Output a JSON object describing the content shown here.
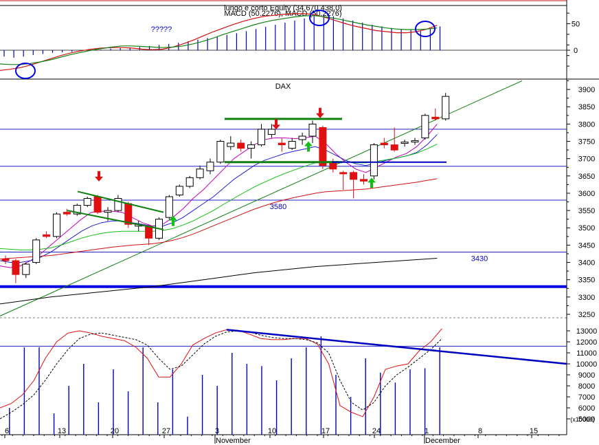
{
  "chart_data": [
    {
      "type": "line",
      "panel": "macd",
      "title": "lungo e corto Equity (34.670.438.0)",
      "subtitle": "MACD (50.2276), MACD (50.2276)",
      "ytick_labels": [
        "50",
        "0"
      ],
      "ylim": [
        -50,
        90
      ],
      "annotation": "?????",
      "series": [
        {
          "color": "#d01010",
          "values": [
            -38,
            -36,
            -33,
            -28,
            -22,
            -16,
            -10,
            -5,
            -1,
            2,
            4,
            5,
            5,
            4,
            2,
            1,
            2,
            6,
            12,
            19,
            27,
            35,
            42,
            49,
            55,
            60,
            64,
            66,
            68,
            69,
            69,
            67,
            62,
            56,
            50,
            45,
            41,
            37,
            35,
            33,
            33,
            35,
            40,
            47
          ]
        },
        {
          "color": "#108010",
          "values": [
            -26,
            -27,
            -27,
            -25,
            -22,
            -18,
            -13,
            -8,
            -4,
            0,
            3,
            6,
            8,
            8,
            7,
            6,
            5,
            6,
            8,
            12,
            17,
            23,
            30,
            36,
            42,
            48,
            53,
            57,
            60,
            63,
            65,
            65,
            63,
            60,
            56,
            52,
            48,
            45,
            42,
            40,
            39,
            39,
            40,
            42
          ]
        }
      ],
      "histogram": [
        -12,
        -14,
        -12,
        -9,
        -7,
        -5,
        -4,
        -3,
        -2,
        -1,
        1,
        3,
        4,
        5,
        6,
        8,
        10,
        12,
        14,
        17,
        20,
        23,
        26,
        29,
        32,
        36,
        40,
        44,
        48,
        52,
        56,
        60,
        64,
        66,
        64,
        60,
        56,
        52,
        48,
        45,
        42,
        40,
        38,
        36,
        40,
        45
      ],
      "markers": [
        "circle",
        "circle",
        "circle"
      ]
    },
    {
      "type": "candlestick",
      "panel": "price",
      "title": "DAX",
      "ytick_labels": [
        "3900",
        "3850",
        "3800",
        "3750",
        "3700",
        "3650",
        "3600",
        "3550",
        "3500",
        "3450",
        "3400",
        "3350",
        "3300",
        "3250"
      ],
      "ylim": [
        3240,
        3930
      ],
      "horizontal_levels": [
        3785,
        3678,
        3580,
        3430,
        3330
      ],
      "level_labels": [
        {
          "text": "3580",
          "value": 3580
        },
        {
          "text": "3430",
          "value": 3430
        }
      ],
      "candles": [
        {
          "o": 3410,
          "h": 3420,
          "l": 3395,
          "c": 3405,
          "dir": "down"
        },
        {
          "o": 3405,
          "h": 3410,
          "l": 3340,
          "c": 3365,
          "dir": "down"
        },
        {
          "o": 3365,
          "h": 3400,
          "l": 3355,
          "c": 3395,
          "dir": "up"
        },
        {
          "o": 3400,
          "h": 3470,
          "l": 3395,
          "c": 3465,
          "dir": "up"
        },
        {
          "o": 3480,
          "h": 3490,
          "l": 3470,
          "c": 3475,
          "dir": "down"
        },
        {
          "o": 3475,
          "h": 3545,
          "l": 3470,
          "c": 3540,
          "dir": "up"
        },
        {
          "o": 3545,
          "h": 3555,
          "l": 3535,
          "c": 3540,
          "dir": "down"
        },
        {
          "o": 3540,
          "h": 3570,
          "l": 3535,
          "c": 3565,
          "dir": "up"
        },
        {
          "o": 3565,
          "h": 3590,
          "l": 3560,
          "c": 3585,
          "dir": "up"
        },
        {
          "o": 3590,
          "h": 3595,
          "l": 3540,
          "c": 3545,
          "dir": "down"
        },
        {
          "o": 3545,
          "h": 3560,
          "l": 3520,
          "c": 3550,
          "dir": "up"
        },
        {
          "o": 3550,
          "h": 3595,
          "l": 3545,
          "c": 3585,
          "dir": "up"
        },
        {
          "o": 3570,
          "h": 3575,
          "l": 3500,
          "c": 3510,
          "dir": "down"
        },
        {
          "o": 3510,
          "h": 3520,
          "l": 3490,
          "c": 3505,
          "dir": "up"
        },
        {
          "o": 3505,
          "h": 3510,
          "l": 3450,
          "c": 3470,
          "dir": "down"
        },
        {
          "o": 3470,
          "h": 3530,
          "l": 3465,
          "c": 3525,
          "dir": "up"
        },
        {
          "o": 3530,
          "h": 3595,
          "l": 3525,
          "c": 3590,
          "dir": "up"
        },
        {
          "o": 3595,
          "h": 3625,
          "l": 3590,
          "c": 3620,
          "dir": "up"
        },
        {
          "o": 3620,
          "h": 3650,
          "l": 3615,
          "c": 3645,
          "dir": "up"
        },
        {
          "o": 3645,
          "h": 3680,
          "l": 3640,
          "c": 3670,
          "dir": "up"
        },
        {
          "o": 3665,
          "h": 3700,
          "l": 3655,
          "c": 3690,
          "dir": "up"
        },
        {
          "o": 3690,
          "h": 3755,
          "l": 3685,
          "c": 3750,
          "dir": "up"
        },
        {
          "o": 3735,
          "h": 3765,
          "l": 3725,
          "c": 3745,
          "dir": "up"
        },
        {
          "o": 3745,
          "h": 3755,
          "l": 3720,
          "c": 3730,
          "dir": "down"
        },
        {
          "o": 3730,
          "h": 3750,
          "l": 3700,
          "c": 3740,
          "dir": "up"
        },
        {
          "o": 3740,
          "h": 3800,
          "l": 3735,
          "c": 3785,
          "dir": "up"
        },
        {
          "o": 3785,
          "h": 3800,
          "l": 3760,
          "c": 3770,
          "dir": "up"
        },
        {
          "o": 3745,
          "h": 3760,
          "l": 3720,
          "c": 3740,
          "dir": "down"
        },
        {
          "o": 3730,
          "h": 3760,
          "l": 3725,
          "c": 3750,
          "dir": "up"
        },
        {
          "o": 3755,
          "h": 3775,
          "l": 3740,
          "c": 3765,
          "dir": "up"
        },
        {
          "o": 3765,
          "h": 3810,
          "l": 3745,
          "c": 3800,
          "dir": "up"
        },
        {
          "o": 3790,
          "h": 3795,
          "l": 3670,
          "c": 3680,
          "dir": "down"
        },
        {
          "o": 3690,
          "h": 3700,
          "l": 3660,
          "c": 3670,
          "dir": "down"
        },
        {
          "o": 3660,
          "h": 3665,
          "l": 3610,
          "c": 3658,
          "dir": "down"
        },
        {
          "o": 3660,
          "h": 3665,
          "l": 3585,
          "c": 3640,
          "dir": "down"
        },
        {
          "o": 3640,
          "h": 3655,
          "l": 3625,
          "c": 3635,
          "dir": "down"
        },
        {
          "o": 3650,
          "h": 3745,
          "l": 3640,
          "c": 3740,
          "dir": "up"
        },
        {
          "o": 3740,
          "h": 3760,
          "l": 3730,
          "c": 3745,
          "dir": "down"
        },
        {
          "o": 3740,
          "h": 3790,
          "l": 3720,
          "c": 3725,
          "dir": "down"
        },
        {
          "o": 3745,
          "h": 3755,
          "l": 3735,
          "c": 3748,
          "dir": "up"
        },
        {
          "o": 3748,
          "h": 3760,
          "l": 3740,
          "c": 3752,
          "dir": "up"
        },
        {
          "o": 3760,
          "h": 3830,
          "l": 3755,
          "c": 3825,
          "dir": "up"
        },
        {
          "o": 3820,
          "h": 3845,
          "l": 3810,
          "c": 3815,
          "dir": "down"
        },
        {
          "o": 3815,
          "h": 3890,
          "l": 3810,
          "c": 3880,
          "dir": "up"
        }
      ],
      "moving_averages": [
        {
          "color": "#c000c0",
          "values": [
            3390,
            3385,
            3390,
            3405,
            3425,
            3450,
            3475,
            3500,
            3525,
            3545,
            3548,
            3548,
            3545,
            3530,
            3515,
            3505,
            3510,
            3530,
            3555,
            3585,
            3610,
            3640,
            3670,
            3700,
            3720,
            3740,
            3755,
            3760,
            3760,
            3758,
            3760,
            3765,
            3745,
            3715,
            3690,
            3670,
            3660,
            3675,
            3690,
            3705,
            3715,
            3735,
            3765,
            3800
          ]
        },
        {
          "color": "#2020d0",
          "values": [
            3405,
            3400,
            3400,
            3405,
            3415,
            3430,
            3450,
            3470,
            3490,
            3505,
            3515,
            3520,
            3520,
            3515,
            3510,
            3505,
            3505,
            3515,
            3530,
            3550,
            3570,
            3590,
            3615,
            3640,
            3660,
            3680,
            3695,
            3705,
            3715,
            3722,
            3728,
            3735,
            3725,
            3710,
            3695,
            3685,
            3680,
            3688,
            3695,
            3702,
            3708,
            3718,
            3740,
            3770
          ]
        },
        {
          "color": "#10c010",
          "values": [
            3440,
            3438,
            3436,
            3436,
            3438,
            3442,
            3450,
            3460,
            3470,
            3478,
            3484,
            3488,
            3490,
            3490,
            3490,
            3490,
            3492,
            3498,
            3508,
            3520,
            3535,
            3550,
            3568,
            3585,
            3602,
            3618,
            3632,
            3645,
            3657,
            3668,
            3678,
            3688,
            3692,
            3692,
            3690,
            3688,
            3688,
            3692,
            3697,
            3702,
            3708,
            3716,
            3728,
            3742
          ]
        },
        {
          "color": "#d01010",
          "values": [
            3410,
            3412,
            3414,
            3416,
            3418,
            3420,
            3424,
            3428,
            3432,
            3436,
            3440,
            3444,
            3447,
            3450,
            3452,
            3454,
            3458,
            3464,
            3472,
            3482,
            3494,
            3506,
            3518,
            3530,
            3542,
            3554,
            3564,
            3573,
            3581,
            3588,
            3594,
            3600,
            3604,
            3606,
            3608,
            3610,
            3612,
            3616,
            3620,
            3624,
            3628,
            3632,
            3637,
            3642
          ]
        },
        {
          "color": "#000000",
          "values": [
            3280,
            3284,
            3288,
            3292,
            3296,
            3300,
            3303,
            3306,
            3309,
            3312,
            3315,
            3318,
            3321,
            3324,
            3327,
            3330,
            3334,
            3338,
            3342,
            3346,
            3350,
            3354,
            3358,
            3362,
            3366,
            3370,
            3373,
            3376,
            3379,
            3382,
            3385,
            3388,
            3390,
            3392,
            3394,
            3396,
            3398,
            3400,
            3402,
            3404,
            3406,
            3408,
            3410,
            3412
          ]
        }
      ],
      "signal_arrows": [
        {
          "type": "sell",
          "color": "#e01010"
        },
        {
          "type": "sell",
          "color": "#e01010"
        },
        {
          "type": "sell",
          "color": "#e01010"
        },
        {
          "type": "buy",
          "color": "#10c010"
        },
        {
          "type": "buy",
          "color": "#10c010"
        },
        {
          "type": "buy",
          "color": "#10c010"
        }
      ]
    },
    {
      "type": "line",
      "panel": "stochastic-volume",
      "ytick_labels": [
        "13000",
        "12000",
        "11000",
        "10000",
        "9000",
        "8000",
        "7000",
        "6000",
        "5000"
      ],
      "ylim": [
        4000,
        13500
      ],
      "axis_unit": "(x10000)",
      "volume": [
        0,
        6000,
        0,
        11500,
        0,
        11500,
        0,
        5500,
        0,
        8000,
        0,
        10000,
        0,
        6500,
        0,
        9500,
        0,
        7500,
        0,
        11500,
        0,
        6500,
        0,
        9500,
        0,
        5200,
        0,
        9000,
        0,
        8000,
        0,
        11000,
        0,
        10000,
        0,
        9800,
        0,
        8500,
        0,
        10500,
        0,
        11500,
        0,
        12500,
        0,
        9000,
        0,
        7000,
        0,
        10500,
        0,
        9200,
        0,
        8300,
        0,
        9500,
        0,
        9600,
        0,
        11500
      ],
      "series": [
        {
          "name": "",
          "color": "#e01010",
          "values": [
            6000,
            6400,
            7200,
            8500,
            10500,
            12000,
            12800,
            13000,
            12800,
            12500,
            12300,
            12100,
            11500,
            10500,
            8800,
            8800,
            10000,
            11700,
            12300,
            12800,
            13100,
            13050,
            12700,
            12300,
            12200,
            12200,
            12300,
            12300,
            11800,
            10000,
            6200,
            5600,
            5200,
            7000,
            9500,
            9800,
            10000,
            11200,
            12000,
            13200
          ]
        },
        {
          "name": "",
          "color": "#000000",
          "dashed": true,
          "values": [
            5000,
            5600,
            6300,
            7200,
            8500,
            10000,
            11300,
            12300,
            12700,
            12800,
            12600,
            12400,
            12200,
            11700,
            10500,
            9500,
            9800,
            10800,
            11800,
            12500,
            12900,
            13000,
            12900,
            12600,
            12400,
            12300,
            12300,
            12200,
            11900,
            11000,
            8500,
            6500,
            5800,
            6500,
            8000,
            9000,
            9700,
            10500,
            11300,
            12300
          ]
        }
      ],
      "horizontal_level": 11600,
      "trendline": "resistance"
    }
  ],
  "x_axis": {
    "day_labels": [
      "6",
      "13",
      "20",
      "27",
      "3",
      "10",
      "17",
      "24",
      "1",
      "8",
      "15"
    ],
    "month_labels": [
      "November",
      "December"
    ]
  }
}
